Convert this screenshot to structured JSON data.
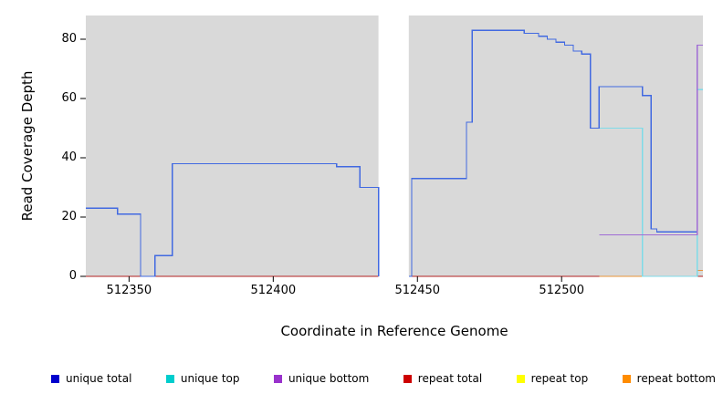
{
  "axes": {
    "xlabel": "Coordinate in Reference Genome",
    "ylabel": "Read Coverage Depth"
  },
  "chart_data": {
    "type": "line",
    "subtype": "step-coverage-plot",
    "title": "",
    "xlabel": "Coordinate in Reference Genome",
    "ylabel": "Read Coverage Depth",
    "xlim": [
      512335,
      512549
    ],
    "ylim": [
      0,
      88
    ],
    "x_ticks": [
      512350,
      512400,
      512450,
      512500
    ],
    "y_ticks": [
      0,
      20,
      40,
      60,
      80
    ],
    "panel_bg": "#d9d9d9",
    "gap_regions": [
      [
        512436.5,
        512447
      ]
    ],
    "legend_position": "bottom",
    "legend": [
      {
        "label": "unique total",
        "color": "#0000CD"
      },
      {
        "label": "unique top",
        "color": "#00CDCD"
      },
      {
        "label": "unique bottom",
        "color": "#9932CC"
      },
      {
        "label": "repeat total",
        "color": "#CD0000"
      },
      {
        "label": "repeat top",
        "color": "#FFFF00"
      },
      {
        "label": "repeat bottom",
        "color": "#FF8C00"
      }
    ],
    "series": [
      {
        "id": "repeat-top",
        "name": "repeat top",
        "line_color": "#FFFF00",
        "segments": [
          [
            [
              512335,
              0
            ],
            [
              512436.5,
              0
            ]
          ],
          [
            [
              512447,
              0
            ],
            [
              512549,
              0
            ]
          ]
        ]
      },
      {
        "id": "repeat-total",
        "name": "repeat total",
        "line_color": "#B22222",
        "segments": [
          [
            [
              512335,
              0
            ],
            [
              512436.5,
              0
            ]
          ],
          [
            [
              512447,
              0
            ],
            [
              512549,
              0
            ]
          ]
        ]
      },
      {
        "id": "repeat-bottom",
        "name": "repeat bottom",
        "line_color": "#E8953A",
        "segments": [
          [
            [
              512513,
              0
            ],
            [
              512547,
              2
            ],
            [
              512549,
              2
            ]
          ]
        ]
      },
      {
        "id": "unique-top",
        "name": "unique top",
        "line_color": "#7FDBE8",
        "segments": [
          [
            [
              512510,
              50
            ],
            [
              512528,
              0
            ],
            [
              512547,
              63
            ],
            [
              512549,
              63
            ]
          ]
        ]
      },
      {
        "id": "unique-total",
        "name": "unique total",
        "line_color": "#4169E1",
        "segments": [
          [
            [
              512335,
              23
            ],
            [
              512346,
              21
            ],
            [
              512354,
              0
            ],
            [
              512359,
              7
            ],
            [
              512365,
              38
            ],
            [
              512422,
              37
            ],
            [
              512430,
              30
            ],
            [
              512436.5,
              0
            ]
          ],
          [
            [
              512447,
              0
            ],
            [
              512448,
              33
            ],
            [
              512467,
              52
            ],
            [
              512469,
              83
            ],
            [
              512487,
              82
            ],
            [
              512492,
              81
            ],
            [
              512495,
              80
            ],
            [
              512498,
              79
            ],
            [
              512501,
              78
            ],
            [
              512504,
              76
            ],
            [
              512507,
              75
            ],
            [
              512510,
              50
            ],
            [
              512513,
              64
            ],
            [
              512528,
              61
            ],
            [
              512531,
              16
            ],
            [
              512533,
              15
            ],
            [
              512547,
              78
            ],
            [
              512549,
              78
            ]
          ]
        ]
      },
      {
        "id": "unique-bottom",
        "name": "unique bottom",
        "line_color": "#A06CD5",
        "segments": [
          [
            [
              512513,
              14
            ],
            [
              512547,
              78
            ],
            [
              512549,
              78
            ]
          ]
        ]
      }
    ]
  }
}
